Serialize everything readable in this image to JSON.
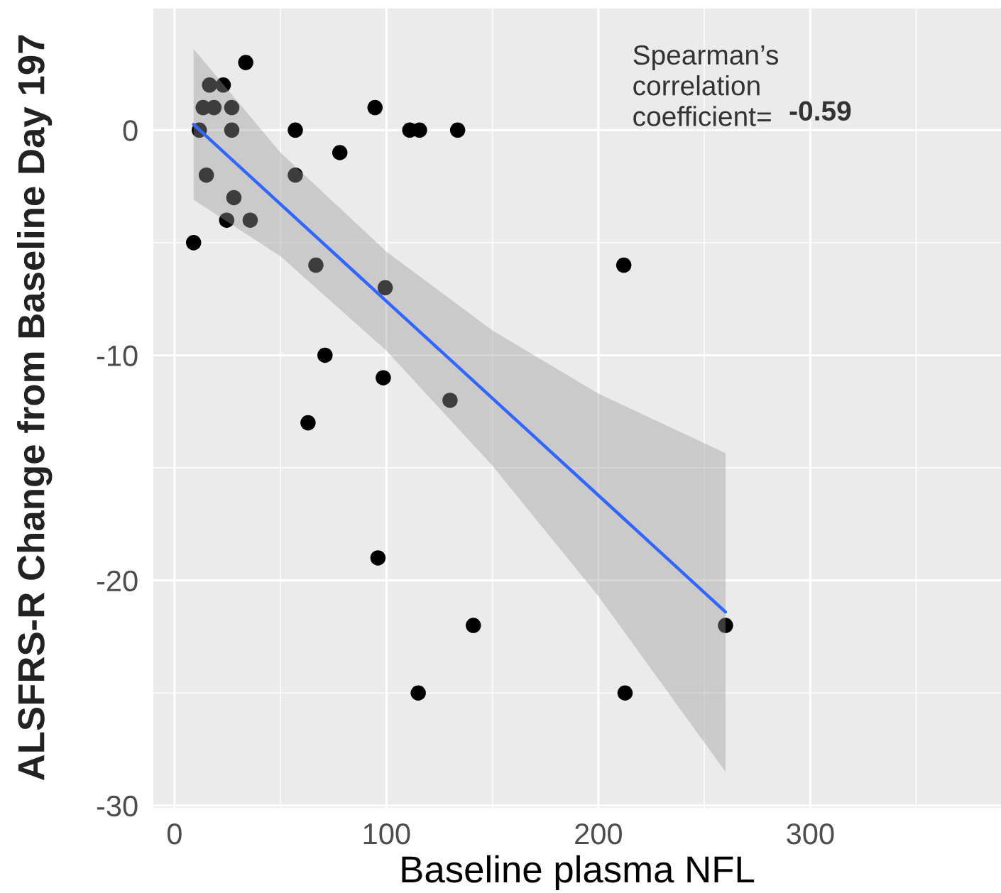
{
  "chart_data": {
    "type": "scatter",
    "xlabel": "Baseline plasma NFL",
    "ylabel": "ALSFRS-R Change from Baseline Day 197",
    "annotations": [
      "Spearman’s\ncorrelation\ncoefficient=",
      "-0.59"
    ],
    "series": [
      {
        "color": "#000000",
        "marker": "circle",
        "x": [
          9,
          11.7,
          13.5,
          18.6,
          16.5,
          23,
          27,
          27,
          15,
          28,
          24.6,
          35.7,
          33.6,
          57,
          57,
          66.7,
          78,
          71,
          63,
          94.6,
          99.4,
          98.5,
          96,
          111,
          115.6,
          133.6,
          130,
          141,
          115,
          212,
          212.6,
          260
        ],
        "values": [
          -5,
          0,
          1,
          1,
          2,
          2,
          1,
          0,
          -2,
          -3,
          -4,
          -4,
          3,
          0,
          -2,
          -6,
          -1,
          -10,
          -13,
          1,
          -7,
          -11,
          -19,
          0,
          0,
          0,
          -12,
          -22,
          -25,
          -6,
          -25,
          -22
        ]
      },
      {
        "type": "line",
        "color": "#3366ff",
        "line_style": "solid",
        "marker": "none",
        "x": [
          9,
          50,
          100,
          150,
          200,
          260
        ],
        "values": [
          0.25,
          -3.29,
          -7.6,
          -11.91,
          -16.22,
          -21.4
        ],
        "lower": [
          -3.1,
          -5.6,
          -9.8,
          -14.9,
          -20.7,
          -28.5
        ],
        "upper": [
          3.6,
          -1.0,
          -5.4,
          -8.9,
          -11.7,
          -14.35
        ]
      }
    ],
    "xlim": [
      -10,
      390
    ],
    "xticks": [
      0,
      100,
      200,
      300
    ],
    "ylim": [
      -30.1,
      5.4
    ],
    "yticks": [
      -30,
      -20,
      -10,
      0
    ],
    "grid": true
  }
}
